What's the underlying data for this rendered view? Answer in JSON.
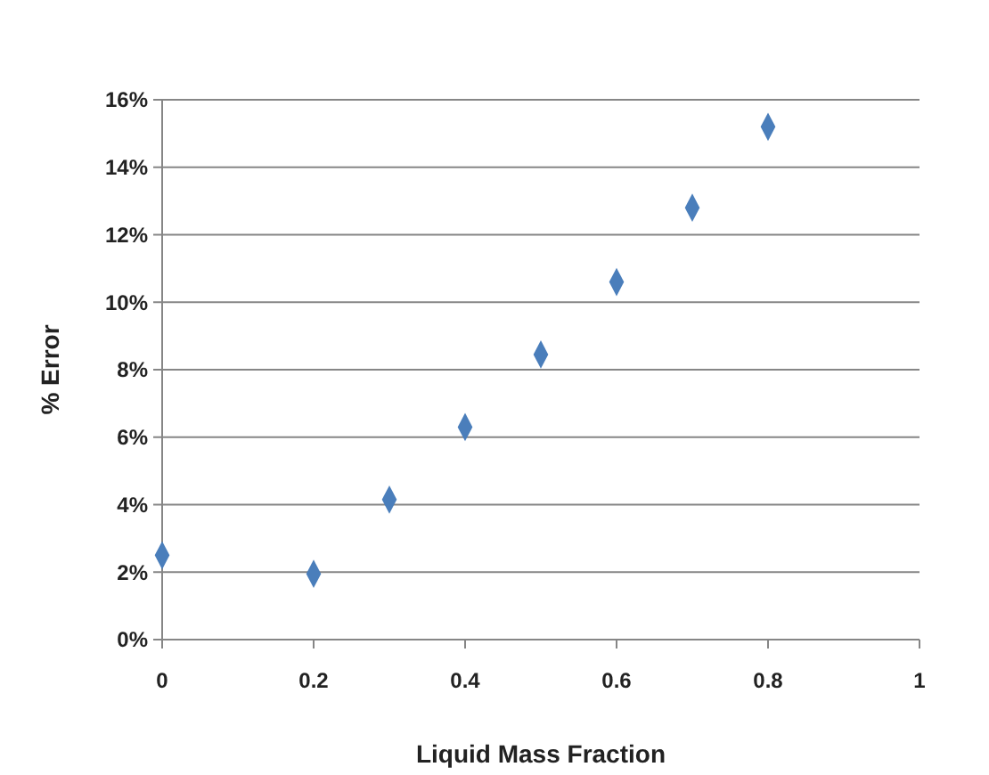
{
  "chart_data": {
    "type": "scatter",
    "xlabel": "Liquid Mass Fraction",
    "ylabel": "% Error",
    "x": [
      0,
      0.2,
      0.3,
      0.4,
      0.5,
      0.6,
      0.7,
      0.8
    ],
    "series": [
      {
        "color": "#4a7ebb",
        "values": [
          2.5,
          1.95,
          4.15,
          6.3,
          8.45,
          10.6,
          12.8,
          15.2
        ]
      }
    ],
    "xlim": [
      0,
      1
    ],
    "xticks": [
      0,
      0.2,
      0.4,
      0.6,
      0.8,
      1
    ],
    "ylim": [
      0,
      16
    ],
    "yticks": [
      {
        "value": 0,
        "label": "0%"
      },
      {
        "value": 2,
        "label": "2%"
      },
      {
        "value": 4,
        "label": "4%"
      },
      {
        "value": 6,
        "label": "6%"
      },
      {
        "value": 8,
        "label": "8%"
      },
      {
        "value": 10,
        "label": "10%"
      },
      {
        "value": 12,
        "label": "12%"
      },
      {
        "value": 14,
        "label": "14%"
      },
      {
        "value": 16,
        "label": "16%"
      }
    ],
    "grid": "y",
    "marker": "diamond"
  }
}
